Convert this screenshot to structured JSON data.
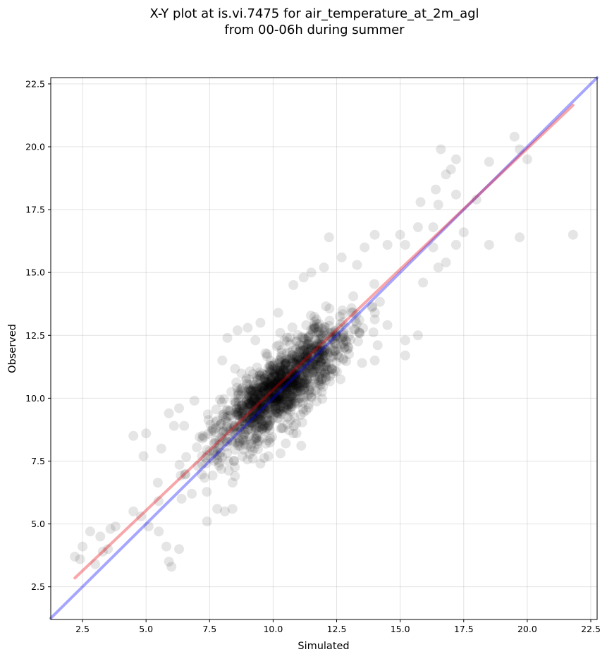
{
  "chart_data": {
    "type": "scatter",
    "title": "X-Y plot at is.vi.7475 for air_temperature_at_2m_agl",
    "subtitle": "from 00-06h during summer",
    "xlabel": "Simulated",
    "ylabel": "Observed",
    "xlim": [
      1.25,
      22.75
    ],
    "ylim": [
      1.2,
      22.75
    ],
    "xticks": [
      "2.5",
      "5.0",
      "7.5",
      "10.0",
      "12.5",
      "15.0",
      "17.5",
      "20.0",
      "22.5"
    ],
    "yticks": [
      "2.5",
      "5.0",
      "7.5",
      "10.0",
      "12.5",
      "15.0",
      "17.5",
      "20.0",
      "22.5"
    ],
    "grid": true,
    "lines": [
      {
        "kind": "one-to-one",
        "color": "#0000ff",
        "x": [
          1.25,
          22.75
        ],
        "y": [
          1.25,
          22.75
        ]
      },
      {
        "kind": "regression-fit",
        "color": "#e8000b",
        "x": [
          2.2,
          21.8
        ],
        "y": [
          2.85,
          21.65
        ]
      }
    ],
    "point_color": "#000000",
    "point_alpha": 0.1,
    "outliers": [
      [
        2.2,
        3.7
      ],
      [
        2.4,
        3.6
      ],
      [
        2.5,
        4.1
      ],
      [
        2.8,
        4.7
      ],
      [
        3.0,
        3.4
      ],
      [
        3.2,
        4.5
      ],
      [
        3.3,
        3.9
      ],
      [
        3.5,
        4.0
      ],
      [
        3.6,
        4.8
      ],
      [
        3.8,
        4.9
      ],
      [
        4.5,
        5.5
      ],
      [
        4.8,
        5.3
      ],
      [
        4.5,
        8.5
      ],
      [
        4.9,
        7.7
      ],
      [
        5.0,
        8.6
      ],
      [
        5.1,
        4.9
      ],
      [
        5.5,
        4.7
      ],
      [
        5.8,
        4.1
      ],
      [
        5.9,
        3.5
      ],
      [
        6.0,
        3.3
      ],
      [
        6.3,
        4.0
      ],
      [
        5.6,
        8.0
      ],
      [
        5.9,
        9.4
      ],
      [
        6.1,
        8.9
      ],
      [
        6.3,
        9.6
      ],
      [
        6.5,
        8.9
      ],
      [
        6.9,
        9.9
      ],
      [
        7.4,
        5.1
      ],
      [
        7.8,
        5.6
      ],
      [
        8.1,
        5.5
      ],
      [
        8.4,
        5.6
      ],
      [
        8.0,
        11.5
      ],
      [
        8.2,
        12.4
      ],
      [
        8.6,
        12.7
      ],
      [
        9.0,
        12.8
      ],
      [
        9.3,
        12.3
      ],
      [
        9.5,
        13.0
      ],
      [
        10.2,
        13.4
      ],
      [
        10.8,
        14.5
      ],
      [
        11.2,
        14.8
      ],
      [
        11.5,
        15.0
      ],
      [
        12.0,
        15.2
      ],
      [
        12.2,
        16.4
      ],
      [
        12.7,
        15.6
      ],
      [
        13.3,
        15.3
      ],
      [
        13.6,
        16.0
      ],
      [
        14.0,
        16.5
      ],
      [
        14.5,
        16.1
      ],
      [
        15.0,
        16.5
      ],
      [
        15.2,
        16.1
      ],
      [
        15.7,
        16.8
      ],
      [
        15.8,
        17.8
      ],
      [
        16.3,
        16.8
      ],
      [
        16.4,
        18.3
      ],
      [
        16.5,
        17.7
      ],
      [
        16.6,
        19.9
      ],
      [
        16.8,
        18.9
      ],
      [
        17.0,
        19.1
      ],
      [
        17.2,
        19.5
      ],
      [
        17.2,
        18.1
      ],
      [
        17.5,
        16.6
      ],
      [
        18.0,
        17.9
      ],
      [
        18.5,
        19.4
      ],
      [
        18.5,
        16.1
      ],
      [
        19.5,
        20.4
      ],
      [
        19.7,
        16.4
      ],
      [
        19.7,
        19.9
      ],
      [
        20.0,
        19.5
      ],
      [
        21.8,
        16.5
      ],
      [
        15.2,
        11.7
      ],
      [
        15.2,
        12.3
      ],
      [
        15.7,
        12.5
      ],
      [
        16.5,
        15.2
      ],
      [
        16.8,
        15.4
      ],
      [
        17.2,
        16.1
      ],
      [
        16.3,
        16.0
      ],
      [
        15.9,
        14.6
      ],
      [
        14.0,
        11.5
      ],
      [
        13.5,
        11.4
      ],
      [
        11.8,
        10.6
      ],
      [
        13.4,
        12.6
      ],
      [
        10.5,
        8.2
      ],
      [
        10.8,
        8.6
      ],
      [
        9.5,
        7.4
      ],
      [
        9.2,
        7.6
      ],
      [
        8.5,
        6.9
      ],
      [
        7.2,
        7.7
      ],
      [
        7.5,
        7.9
      ],
      [
        6.4,
        6.0
      ],
      [
        6.8,
        6.2
      ]
    ],
    "cluster": {
      "n_points": 1350,
      "center": [
        10.3,
        10.4
      ],
      "spread_along_fit": 1.75,
      "spread_across_fit": 0.55
    }
  }
}
